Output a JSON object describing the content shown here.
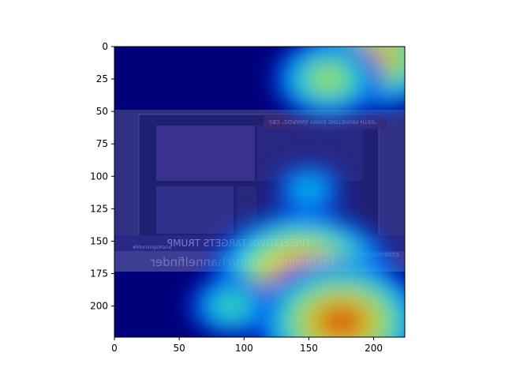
{
  "chart_data": {
    "type": "heatmap",
    "title": "",
    "xlabel": "",
    "ylabel": "",
    "xlim": [
      0,
      224
    ],
    "ylim": [
      224,
      0
    ],
    "x_ticks": [
      0,
      50,
      100,
      150,
      200
    ],
    "y_ticks": [
      0,
      25,
      50,
      75,
      100,
      125,
      150,
      175,
      200
    ],
    "colormap": "jet",
    "grid": false,
    "legend": "none",
    "hotspots": [
      {
        "x": 145,
        "y": 178,
        "intensity": 1.0
      },
      {
        "x": 175,
        "y": 212,
        "intensity": 0.95
      },
      {
        "x": 200,
        "y": 8,
        "intensity": 0.8
      },
      {
        "x": 165,
        "y": 25,
        "intensity": 0.6
      },
      {
        "x": 90,
        "y": 200,
        "intensity": 0.45
      },
      {
        "x": 150,
        "y": 110,
        "intensity": 0.35
      }
    ],
    "image_text": {
      "banner": "\"69TH PRIMETIME EMMY AWARDS\" CBS",
      "headline": "TINSELTOWN TARGETS TRUMP",
      "url": "foxbusiness.com/channelfinder",
      "hashtag": "#MorningsMaria",
      "logo": "FOX BUSINESS"
    }
  }
}
